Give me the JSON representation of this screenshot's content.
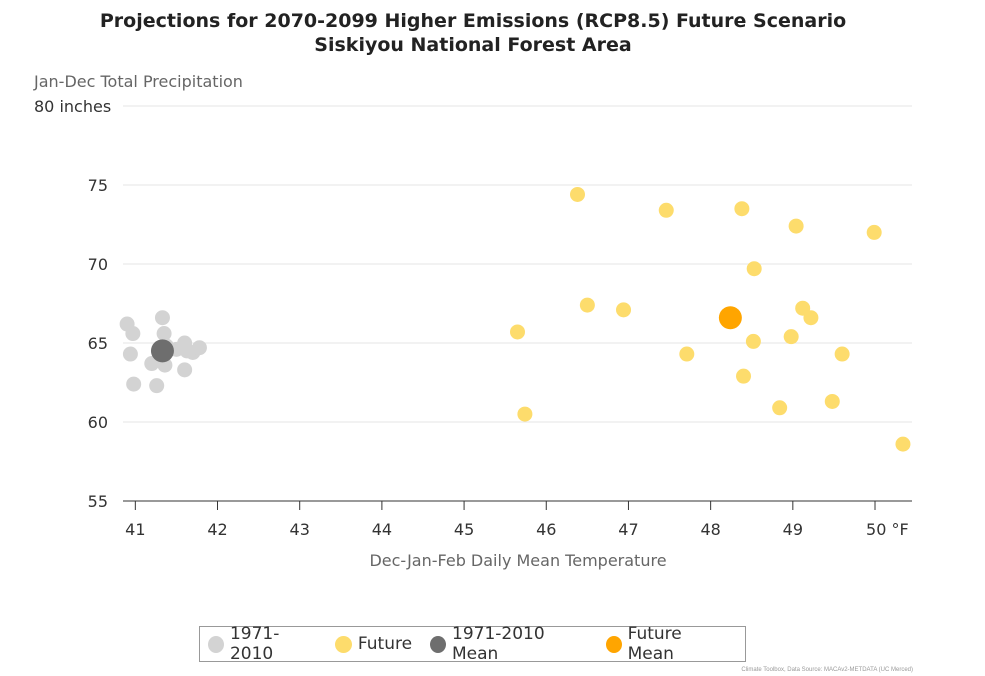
{
  "chart_data": {
    "type": "scatter",
    "title": "Projections for 2070-2099 Higher Emissions (RCP8.5) Future Scenario",
    "subtitle": "Siskiyou National Forest Area",
    "ylabel": "Jan-Dec Total Precipitation",
    "xlabel": "Dec-Jan-Feb Daily Mean Temperature",
    "xlim": [
      40.85,
      50.45
    ],
    "ylim": [
      55,
      80
    ],
    "x_ticks": [
      41,
      42,
      43,
      44,
      45,
      46,
      47,
      48,
      49,
      50
    ],
    "x_tick_labels": [
      "41",
      "42",
      "43",
      "44",
      "45",
      "46",
      "47",
      "48",
      "49",
      "50 °F"
    ],
    "y_ticks": [
      55,
      60,
      65,
      70,
      75,
      80
    ],
    "y_tick_labels": [
      "55",
      "60",
      "65",
      "70",
      "75",
      "80 inches"
    ],
    "grid": "horizontal",
    "legend_position": "bottom",
    "credit": "Climate Toolbox, Data Source: MACAv2-METDATA (UC Merced)",
    "series": [
      {
        "name": "1971-2010",
        "color": "#d3d3d3",
        "points": [
          [
            40.9,
            66.2
          ],
          [
            40.97,
            65.6
          ],
          [
            40.94,
            64.3
          ],
          [
            40.98,
            62.4
          ],
          [
            41.33,
            66.6
          ],
          [
            41.35,
            65.6
          ],
          [
            41.38,
            64.8
          ],
          [
            41.2,
            63.7
          ],
          [
            41.26,
            62.3
          ],
          [
            41.36,
            63.6
          ],
          [
            41.5,
            64.6
          ],
          [
            41.6,
            65.0
          ],
          [
            41.63,
            64.5
          ],
          [
            41.7,
            64.4
          ],
          [
            41.78,
            64.7
          ],
          [
            41.6,
            63.3
          ]
        ]
      },
      {
        "name": "Future",
        "color": "#fddc6c",
        "points": [
          [
            46.38,
            74.4
          ],
          [
            47.46,
            73.4
          ],
          [
            48.38,
            73.5
          ],
          [
            49.04,
            72.4
          ],
          [
            49.99,
            72.0
          ],
          [
            48.53,
            69.7
          ],
          [
            46.5,
            67.4
          ],
          [
            46.94,
            67.1
          ],
          [
            49.12,
            67.2
          ],
          [
            49.22,
            66.6
          ],
          [
            45.65,
            65.7
          ],
          [
            48.52,
            65.1
          ],
          [
            48.98,
            65.4
          ],
          [
            47.71,
            64.3
          ],
          [
            49.6,
            64.3
          ],
          [
            48.4,
            62.9
          ],
          [
            48.84,
            60.9
          ],
          [
            49.48,
            61.3
          ],
          [
            45.74,
            60.5
          ],
          [
            50.34,
            58.6
          ]
        ]
      },
      {
        "name": "1971-2010 Mean",
        "color": "#6e6e6e",
        "points": [
          [
            41.33,
            64.5
          ]
        ]
      },
      {
        "name": "Future Mean",
        "color": "#ffa500",
        "points": [
          [
            48.24,
            66.6
          ]
        ]
      }
    ]
  }
}
